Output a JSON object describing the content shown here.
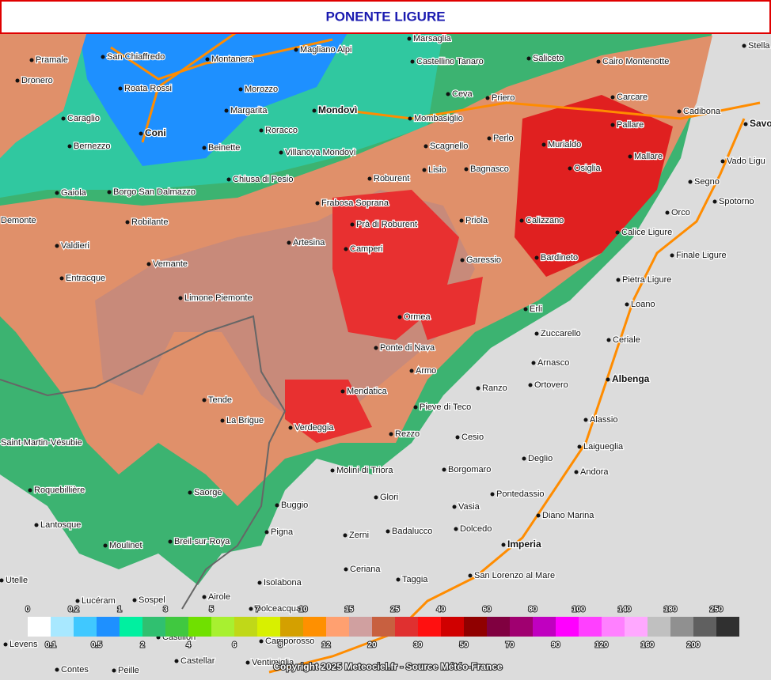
{
  "header": {
    "title": "PONENTE LIGURE"
  },
  "towns": [
    "Pramale",
    "San Chiaffredo",
    "Montanera",
    "Magliano Alpi",
    "Marsaglia",
    "Castellino Tanaro",
    "Saliceto",
    "Cairo Montenotte",
    "Stella",
    "Dronero",
    "Roata Rossi",
    "Morozzo",
    "Margarita",
    "Mondovì",
    "Ceva",
    "Priero",
    "Carcare",
    "Cadibona",
    "Caraglio",
    "Coni",
    "Roracco",
    "Mombasiglio",
    "Perlo",
    "Pallare",
    "Savo",
    "Bernezzo",
    "Beinette",
    "Villanova Mondovì",
    "Scagnello",
    "Murialdo",
    "Mallare",
    "Vado Ligu",
    "Gaiola",
    "Borgo San Dalmazzo",
    "Chiusa di Pesio",
    "Roburent",
    "Lisio",
    "Bagnasco",
    "Osiglia",
    "Segno",
    "Demonte",
    "Frabosa Soprana",
    "Robilante",
    "Priola",
    "Calizzano",
    "Orco",
    "Spotorno",
    "Valdieri",
    "Prà di Roburent",
    "Artesina",
    "Camperi",
    "Calice Ligure",
    "Garessio",
    "Bardineto",
    "Finale Ligure",
    "Entracque",
    "Vernante",
    "Limone Piemonte",
    "Pietra Ligure",
    "Loano",
    "Erli",
    "Ormea",
    "Zuccarello",
    "Ceriale",
    "Ponte di Nava",
    "Arnasco",
    "Armo",
    "Albenga",
    "Ranzo",
    "Ortovero",
    "Mendatica",
    "Tende",
    "Pieve di Teco",
    "Alassio",
    "La Brigue",
    "Verdeggia",
    "Rezzo",
    "Cesio",
    "Laigueglia",
    "Saint-Martin-Vésubie",
    "Deglio",
    "Molini di Triora",
    "Borgomaro",
    "Andora",
    "Roquebillière",
    "Saorge",
    "Glori",
    "Pontedassio",
    "Buggio",
    "Vasia",
    "Diano Marina",
    "Lantosque",
    "Pigna",
    "Badalucco",
    "Dolcedo",
    "Zerni",
    "Moulinet",
    "Breil-sur-Roya",
    "Imperia",
    "Ceriana",
    "San Lorenzo al Mare",
    "Utelle",
    "Isolabona",
    "Taggia",
    "Lucéram",
    "Sospel",
    "Airole",
    "Dolceacqua",
    "Levens",
    "Castillon",
    "Camporosso",
    "Castellar",
    "Contes",
    "Peille",
    "Ventimiglia"
  ],
  "legend": {
    "items": [
      {
        "label": 0,
        "color": "#ffffff"
      },
      {
        "label": 0.1,
        "color": "#a8e8ff"
      },
      {
        "label": 0.2,
        "color": "#40c8ff"
      },
      {
        "label": 0.5,
        "color": "#1e90ff"
      },
      {
        "label": 1,
        "color": "#00f0a0"
      },
      {
        "label": 2,
        "color": "#30c070"
      },
      {
        "label": 3,
        "color": "#40c840"
      },
      {
        "label": 4,
        "color": "#70e000"
      },
      {
        "label": 5,
        "color": "#a8f030"
      },
      {
        "label": 6,
        "color": "#c0d818"
      },
      {
        "label": 7,
        "color": "#d8f000"
      },
      {
        "label": 8,
        "color": "#d4a000"
      },
      {
        "label": 10,
        "color": "#ff9000"
      },
      {
        "label": 12,
        "color": "#ffa070"
      },
      {
        "label": 15,
        "color": "#d0a0a0"
      },
      {
        "label": 20,
        "color": "#c86040"
      },
      {
        "label": 25,
        "color": "#e03030"
      },
      {
        "label": 30,
        "color": "#ff1010"
      },
      {
        "label": 40,
        "color": "#d00000"
      },
      {
        "label": 50,
        "color": "#900000"
      },
      {
        "label": 60,
        "color": "#800040"
      },
      {
        "label": 70,
        "color": "#a00070"
      },
      {
        "label": 80,
        "color": "#c000c0"
      },
      {
        "label": 90,
        "color": "#ff00ff"
      },
      {
        "label": 100,
        "color": "#ff40ff"
      },
      {
        "label": 120,
        "color": "#ff80ff"
      },
      {
        "label": 140,
        "color": "#ffa8ff"
      },
      {
        "label": 160,
        "color": "#c0c0c0"
      },
      {
        "label": 180,
        "color": "#909090"
      },
      {
        "label": 200,
        "color": "#606060"
      },
      {
        "label": 250,
        "color": "#303030"
      }
    ]
  },
  "footer": {
    "copyright": "Copyright 2025 Meteociel.fr - Source Météo-France"
  }
}
